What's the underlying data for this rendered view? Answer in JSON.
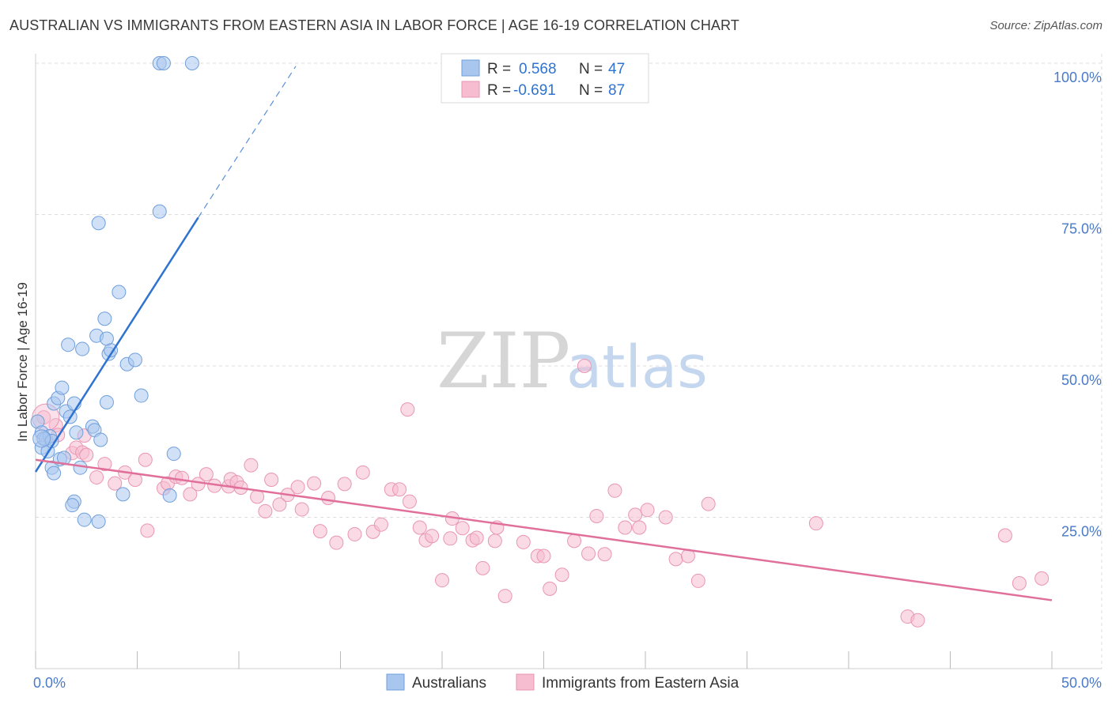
{
  "title": "AUSTRALIAN VS IMMIGRANTS FROM EASTERN ASIA IN LABOR FORCE | AGE 16-19 CORRELATION CHART",
  "source": "Source: ZipAtlas.com",
  "watermark": {
    "zip": "ZIP",
    "atlas": "atlas"
  },
  "colors": {
    "blue_fill": "#a9c6ef",
    "blue_stroke": "#6f9fdc",
    "blue_line": "#2f73d0",
    "pink_fill": "#f6bcd0",
    "pink_stroke": "#e996b4",
    "pink_line": "#e0709a",
    "tick_text": "#4a7ac8",
    "grid": "#dddddd"
  },
  "legend_top": {
    "rows": [
      {
        "r_label": "R = ",
        "r_value": "0.568",
        "n_label": "N = ",
        "n_value": "47"
      },
      {
        "r_label": "R = ",
        "r_value": "-0.691",
        "n_label": "N = ",
        "n_value": "87"
      }
    ]
  },
  "chart_data": {
    "type": "scatter",
    "title": "AUSTRALIAN VS IMMIGRANTS FROM EASTERN ASIA IN LABOR FORCE | AGE 16-19 CORRELATION CHART",
    "xlabel": "",
    "ylabel": "In Labor Force | Age 16-19",
    "xlim": [
      0,
      50
    ],
    "ylim": [
      0,
      100
    ],
    "x_tick_labels": [
      {
        "value": 0,
        "label": "0.0%"
      },
      {
        "value": 50,
        "label": "50.0%"
      }
    ],
    "x_minor_ticks": [
      0,
      5,
      10,
      15,
      20,
      25,
      30,
      35,
      40,
      45,
      50
    ],
    "y_tick_labels": [
      {
        "value": 25,
        "label": "25.0%"
      },
      {
        "value": 50,
        "label": "50.0%"
      },
      {
        "value": 75,
        "label": "75.0%"
      },
      {
        "value": 100,
        "label": "100.0%"
      }
    ],
    "grid": true,
    "series": [
      {
        "name": "Australians",
        "color": "blue",
        "points": [
          [
            0.1,
            40.8
          ],
          [
            0.3,
            39.0
          ],
          [
            0.5,
            37.9
          ],
          [
            0.7,
            38.4
          ],
          [
            0.3,
            36.5
          ],
          [
            0.6,
            35.9
          ],
          [
            0.8,
            33.2
          ],
          [
            0.9,
            32.3
          ],
          [
            1.2,
            34.6
          ],
          [
            1.4,
            34.8
          ],
          [
            0.9,
            43.8
          ],
          [
            1.1,
            44.7
          ],
          [
            1.3,
            46.4
          ],
          [
            1.5,
            42.5
          ],
          [
            1.7,
            41.6
          ],
          [
            1.9,
            43.8
          ],
          [
            2.0,
            39.0
          ],
          [
            2.2,
            33.2
          ],
          [
            1.9,
            27.6
          ],
          [
            1.8,
            27.0
          ],
          [
            2.4,
            24.6
          ],
          [
            3.1,
            24.3
          ],
          [
            2.8,
            40.0
          ],
          [
            2.9,
            39.4
          ],
          [
            3.2,
            37.8
          ],
          [
            3.5,
            44.0
          ],
          [
            3.6,
            52.0
          ],
          [
            3.7,
            52.6
          ],
          [
            2.3,
            52.8
          ],
          [
            3.0,
            55.0
          ],
          [
            1.6,
            53.5
          ],
          [
            3.4,
            57.8
          ],
          [
            3.5,
            54.5
          ],
          [
            4.1,
            62.2
          ],
          [
            4.3,
            28.8
          ],
          [
            4.5,
            50.3
          ],
          [
            4.9,
            51.0
          ],
          [
            5.2,
            45.1
          ],
          [
            6.1,
            75.5
          ],
          [
            3.1,
            73.6
          ],
          [
            6.1,
            100.0
          ],
          [
            6.3,
            100.0
          ],
          [
            7.7,
            100.0
          ],
          [
            6.6,
            28.6
          ],
          [
            6.8,
            35.5
          ],
          [
            0.4,
            38.0
          ],
          [
            0.8,
            37.6
          ]
        ],
        "trend": {
          "x1": 0.0,
          "y1": 32.5,
          "x2": 8.0,
          "y2": 74.5,
          "dash_to_x": 12.8,
          "dash_to_y": 99.5
        }
      },
      {
        "name": "Immigrants from Eastern Asia",
        "color": "pink",
        "points": [
          [
            0.4,
            41.5
          ],
          [
            1.0,
            40.2
          ],
          [
            1.1,
            38.6
          ],
          [
            1.8,
            35.6
          ],
          [
            2.0,
            36.5
          ],
          [
            2.3,
            35.7
          ],
          [
            2.5,
            35.3
          ],
          [
            3.0,
            31.6
          ],
          [
            3.4,
            33.8
          ],
          [
            3.9,
            30.6
          ],
          [
            4.4,
            32.4
          ],
          [
            4.9,
            31.2
          ],
          [
            5.4,
            34.5
          ],
          [
            5.5,
            22.8
          ],
          [
            6.3,
            29.8
          ],
          [
            6.5,
            30.6
          ],
          [
            6.9,
            31.7
          ],
          [
            7.2,
            31.5
          ],
          [
            7.6,
            28.8
          ],
          [
            8.0,
            30.5
          ],
          [
            8.4,
            32.1
          ],
          [
            8.8,
            30.2
          ],
          [
            9.5,
            30.1
          ],
          [
            9.6,
            31.3
          ],
          [
            9.9,
            30.8
          ],
          [
            10.1,
            29.9
          ],
          [
            10.6,
            33.6
          ],
          [
            10.9,
            28.4
          ],
          [
            11.3,
            26.0
          ],
          [
            11.6,
            31.2
          ],
          [
            12.0,
            27.1
          ],
          [
            12.4,
            28.7
          ],
          [
            12.9,
            30.0
          ],
          [
            13.1,
            26.3
          ],
          [
            13.7,
            30.6
          ],
          [
            14.0,
            22.7
          ],
          [
            14.4,
            28.2
          ],
          [
            14.8,
            20.8
          ],
          [
            15.2,
            30.5
          ],
          [
            15.7,
            22.2
          ],
          [
            16.1,
            32.4
          ],
          [
            16.6,
            22.6
          ],
          [
            17.0,
            23.8
          ],
          [
            17.5,
            29.6
          ],
          [
            17.9,
            29.6
          ],
          [
            18.4,
            27.6
          ],
          [
            18.9,
            23.3
          ],
          [
            19.2,
            21.2
          ],
          [
            19.5,
            21.9
          ],
          [
            20.0,
            14.6
          ],
          [
            20.4,
            21.5
          ],
          [
            20.5,
            24.8
          ],
          [
            21.0,
            23.2
          ],
          [
            21.5,
            21.2
          ],
          [
            21.7,
            21.6
          ],
          [
            22.0,
            16.6
          ],
          [
            22.6,
            21.1
          ],
          [
            22.7,
            23.3
          ],
          [
            23.1,
            12.0
          ],
          [
            24.0,
            20.9
          ],
          [
            24.7,
            18.6
          ],
          [
            25.0,
            18.6
          ],
          [
            25.3,
            13.2
          ],
          [
            25.9,
            15.5
          ],
          [
            26.5,
            21.1
          ],
          [
            27.2,
            19.0
          ],
          [
            27.6,
            25.2
          ],
          [
            28.0,
            18.9
          ],
          [
            28.5,
            29.4
          ],
          [
            29.0,
            23.3
          ],
          [
            29.5,
            25.4
          ],
          [
            29.7,
            23.3
          ],
          [
            30.1,
            26.2
          ],
          [
            31.0,
            25.0
          ],
          [
            31.5,
            18.1
          ],
          [
            32.1,
            18.6
          ],
          [
            32.6,
            14.5
          ],
          [
            33.1,
            27.2
          ],
          [
            27.0,
            50.0
          ],
          [
            18.3,
            42.8
          ],
          [
            38.4,
            24.0
          ],
          [
            42.9,
            8.6
          ],
          [
            43.4,
            8.0
          ],
          [
            47.7,
            22.0
          ],
          [
            48.4,
            14.1
          ],
          [
            49.5,
            14.9
          ],
          [
            2.4,
            38.5
          ]
        ],
        "trend": {
          "x1": 0.0,
          "y1": 34.5,
          "x2": 50.0,
          "y2": 11.3
        }
      }
    ]
  },
  "bottom_legend": [
    {
      "label": "Australians",
      "color": "blue"
    },
    {
      "label": "Immigrants from Eastern Asia",
      "color": "pink"
    }
  ]
}
